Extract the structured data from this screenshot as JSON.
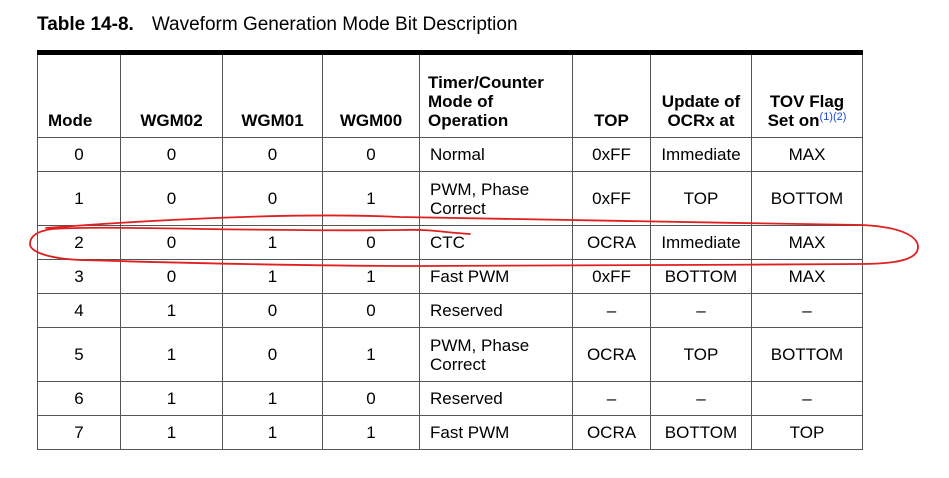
{
  "caption": {
    "number": "Table 14-8.",
    "title": "Waveform Generation Mode Bit Description"
  },
  "headers": {
    "mode": "Mode",
    "wgm02": "WGM02",
    "wgm01": "WGM01",
    "wgm00": "WGM00",
    "operation": [
      "Timer/Counter",
      "Mode of",
      "Operation"
    ],
    "top": "TOP",
    "update": [
      "Update of",
      "OCRx at"
    ],
    "tov": [
      "TOV Flag",
      "Set on"
    ],
    "tov_notes": "(1)(2)"
  },
  "rows": [
    {
      "mode": "0",
      "wgm02": "0",
      "wgm01": "0",
      "wgm00": "0",
      "operation": [
        "Normal"
      ],
      "top": "0xFF",
      "update": "Immediate",
      "tov": "MAX"
    },
    {
      "mode": "1",
      "wgm02": "0",
      "wgm01": "0",
      "wgm00": "1",
      "operation": [
        "PWM, Phase",
        "Correct"
      ],
      "top": "0xFF",
      "update": "TOP",
      "tov": "BOTTOM"
    },
    {
      "mode": "2",
      "wgm02": "0",
      "wgm01": "1",
      "wgm00": "0",
      "operation": [
        "CTC"
      ],
      "top": "OCRA",
      "update": "Immediate",
      "tov": "MAX"
    },
    {
      "mode": "3",
      "wgm02": "0",
      "wgm01": "1",
      "wgm00": "1",
      "operation": [
        "Fast PWM"
      ],
      "top": "0xFF",
      "update": "BOTTOM",
      "tov": "MAX"
    },
    {
      "mode": "4",
      "wgm02": "1",
      "wgm01": "0",
      "wgm00": "0",
      "operation": [
        "Reserved"
      ],
      "top": "–",
      "update": "–",
      "tov": "–"
    },
    {
      "mode": "5",
      "wgm02": "1",
      "wgm01": "0",
      "wgm00": "1",
      "operation": [
        "PWM, Phase",
        "Correct"
      ],
      "top": "OCRA",
      "update": "TOP",
      "tov": "BOTTOM"
    },
    {
      "mode": "6",
      "wgm02": "1",
      "wgm01": "1",
      "wgm00": "0",
      "operation": [
        "Reserved"
      ],
      "top": "–",
      "update": "–",
      "tov": "–"
    },
    {
      "mode": "7",
      "wgm02": "1",
      "wgm01": "1",
      "wgm00": "1",
      "operation": [
        "Fast PWM"
      ],
      "top": "OCRA",
      "update": "BOTTOM",
      "tov": "TOP"
    }
  ],
  "annotation": {
    "color": "#e02020",
    "highlighted_mode": "2"
  }
}
